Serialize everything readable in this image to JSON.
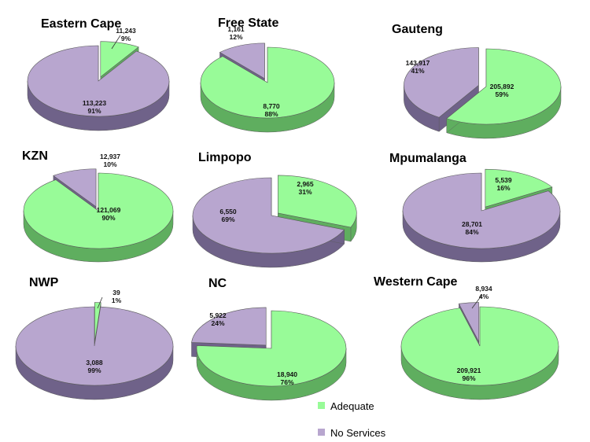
{
  "colors": {
    "adequate": "#98fb98",
    "adequate_side": "#5fae5f",
    "no_services": "#b8a6cf",
    "no_services_side": "#6f6289",
    "edge": "#5a5a5a"
  },
  "legend": {
    "adequate_label": "Adequate",
    "no_services_label": "No Services"
  },
  "chart_data": [
    {
      "type": "pie",
      "title": "Eastern Cape",
      "slices": [
        {
          "category": "Adequate",
          "value": 11243,
          "value_label": "11,243",
          "percent_label": "9%",
          "exploded": true
        },
        {
          "category": "No Services",
          "value": 113223,
          "value_label": "113,223",
          "percent_label": "91%",
          "exploded": false
        }
      ]
    },
    {
      "type": "pie",
      "title": "Free State",
      "slices": [
        {
          "category": "Adequate",
          "value": 8770,
          "value_label": "8,770",
          "percent_label": "88%",
          "exploded": false
        },
        {
          "category": "No Services",
          "value": 1161,
          "value_label": "1,161",
          "percent_label": "12%",
          "exploded": true
        }
      ]
    },
    {
      "type": "pie",
      "title": "Gauteng",
      "slices": [
        {
          "category": "Adequate",
          "value": 205892,
          "value_label": "205,892",
          "percent_label": "59%",
          "exploded": false
        },
        {
          "category": "No Services",
          "value": 143917,
          "value_label": "143,917",
          "percent_label": "41%",
          "exploded": true
        }
      ]
    },
    {
      "type": "pie",
      "title": "KZN",
      "slices": [
        {
          "category": "Adequate",
          "value": 121069,
          "value_label": "121,069",
          "percent_label": "90%",
          "exploded": false
        },
        {
          "category": "No Services",
          "value": 12937,
          "value_label": "12,937",
          "percent_label": "10%",
          "exploded": true
        }
      ]
    },
    {
      "type": "pie",
      "title": "Limpopo",
      "slices": [
        {
          "category": "Adequate",
          "value": 2965,
          "value_label": "2,965",
          "percent_label": "31%",
          "exploded": true
        },
        {
          "category": "No Services",
          "value": 6550,
          "value_label": "6,550",
          "percent_label": "69%",
          "exploded": false
        }
      ]
    },
    {
      "type": "pie",
      "title": "Mpumalanga",
      "slices": [
        {
          "category": "Adequate",
          "value": 5539,
          "value_label": "5,539",
          "percent_label": "16%",
          "exploded": true
        },
        {
          "category": "No Services",
          "value": 28701,
          "value_label": "28,701",
          "percent_label": "84%",
          "exploded": false
        }
      ]
    },
    {
      "type": "pie",
      "title": "NWP",
      "slices": [
        {
          "category": "Adequate",
          "value": 39,
          "value_label": "39",
          "percent_label": "1%",
          "exploded": true
        },
        {
          "category": "No Services",
          "value": 3088,
          "value_label": "3,088",
          "percent_label": "99%",
          "exploded": false
        }
      ]
    },
    {
      "type": "pie",
      "title": "NC",
      "slices": [
        {
          "category": "Adequate",
          "value": 18940,
          "value_label": "18,940",
          "percent_label": "76%",
          "exploded": false
        },
        {
          "category": "No Services",
          "value": 5922,
          "value_label": "5,922",
          "percent_label": "24%",
          "exploded": true
        }
      ]
    },
    {
      "type": "pie",
      "title": "Western Cape",
      "slices": [
        {
          "category": "Adequate",
          "value": 209921,
          "value_label": "209,921",
          "percent_label": "96%",
          "exploded": false
        },
        {
          "category": "No Services",
          "value": 8934,
          "value_label": "8,934",
          "percent_label": "4%",
          "exploded": true
        }
      ]
    }
  ]
}
